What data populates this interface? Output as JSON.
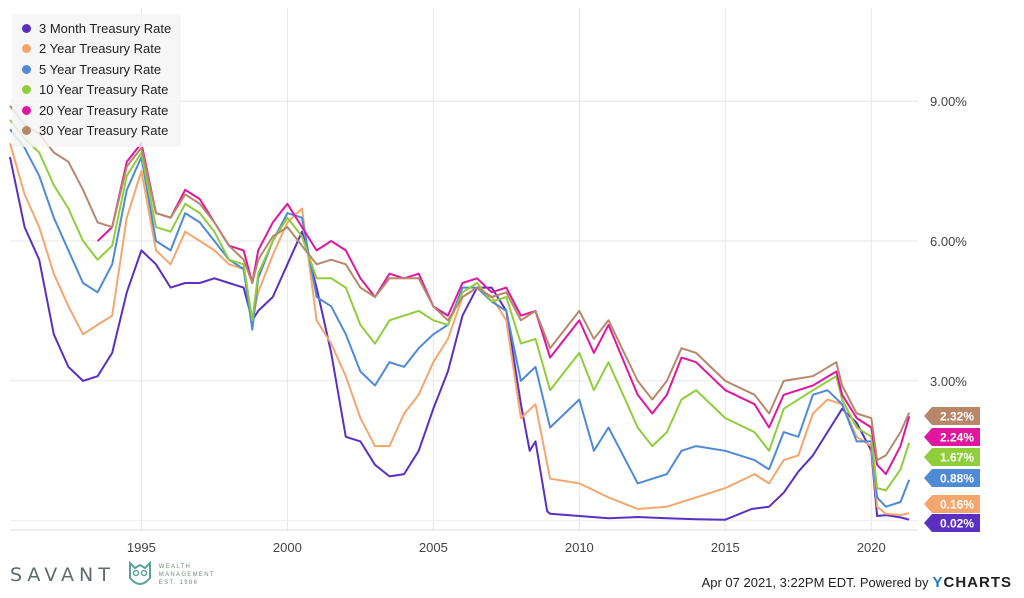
{
  "chart_data": {
    "type": "line",
    "y_axis_side": "right",
    "ylim": [
      -0.2,
      11.0
    ],
    "y_ticks": [
      3,
      6,
      9
    ],
    "y_tick_labels": [
      "3.00%",
      "6.00%",
      "9.00%"
    ],
    "xlim": [
      1990.5,
      2021.6
    ],
    "x_ticks": [
      1995,
      2000,
      2005,
      2010,
      2015,
      2020
    ],
    "x_tick_labels": [
      "1995",
      "2000",
      "2005",
      "2010",
      "2015",
      "2020"
    ],
    "grid": true,
    "legend_position": "top-left",
    "series": [
      {
        "name": "3 Month Treasury Rate",
        "color": "#5b2fc2",
        "last_label": "0.02%",
        "last_value": 0.02,
        "x": [
          1990.5,
          1991,
          1991.5,
          1992,
          1992.5,
          1993,
          1993.5,
          1994,
          1994.5,
          1995,
          1995.5,
          1996,
          1996.5,
          1997,
          1997.5,
          1998,
          1998.5,
          1998.8,
          1999,
          1999.5,
          2000,
          2000.5,
          2001,
          2001.5,
          2002,
          2002.5,
          2003,
          2003.5,
          2004,
          2004.5,
          2005,
          2005.5,
          2006,
          2006.5,
          2007,
          2007.5,
          2008,
          2008.3,
          2008.5,
          2008.9,
          2009,
          2010,
          2011,
          2012,
          2013,
          2014,
          2015,
          2015.9,
          2016.5,
          2017,
          2017.5,
          2018,
          2018.5,
          2019,
          2019.5,
          2020,
          2020.2,
          2020.5,
          2021,
          2021.3
        ],
        "y": [
          7.8,
          6.3,
          5.6,
          4.0,
          3.3,
          3.0,
          3.1,
          3.6,
          4.9,
          5.8,
          5.5,
          5.0,
          5.1,
          5.1,
          5.2,
          5.1,
          5.0,
          4.3,
          4.5,
          4.8,
          5.5,
          6.2,
          5.0,
          3.6,
          1.8,
          1.7,
          1.2,
          0.95,
          1.0,
          1.5,
          2.4,
          3.2,
          4.4,
          5.0,
          5.0,
          4.5,
          2.5,
          1.5,
          1.7,
          0.2,
          0.15,
          0.1,
          0.05,
          0.08,
          0.05,
          0.03,
          0.02,
          0.25,
          0.3,
          0.6,
          1.05,
          1.4,
          1.9,
          2.4,
          2.1,
          1.5,
          0.1,
          0.12,
          0.07,
          0.02
        ]
      },
      {
        "name": "2 Year Treasury Rate",
        "color": "#f5a66d",
        "last_label": "0.16%",
        "last_value": 0.16,
        "x": [
          1990.5,
          1991,
          1991.5,
          1992,
          1992.5,
          1993,
          1993.5,
          1994,
          1994.5,
          1995,
          1995.5,
          1996,
          1996.5,
          1997,
          1997.5,
          1998,
          1998.5,
          1998.8,
          1999,
          1999.5,
          2000,
          2000.5,
          2001,
          2001.5,
          2002,
          2002.5,
          2003,
          2003.5,
          2004,
          2004.5,
          2005,
          2005.5,
          2006,
          2006.5,
          2007,
          2007.5,
          2008,
          2008.5,
          2009,
          2010,
          2011,
          2012,
          2013,
          2014,
          2015,
          2016,
          2016.5,
          2017,
          2017.5,
          2018,
          2018.5,
          2019,
          2019.5,
          2020,
          2020.2,
          2020.5,
          2021,
          2021.3
        ],
        "y": [
          8.1,
          7.0,
          6.3,
          5.3,
          4.6,
          4.0,
          4.2,
          4.4,
          6.5,
          7.5,
          5.8,
          5.5,
          6.2,
          6.0,
          5.8,
          5.5,
          5.4,
          4.3,
          4.9,
          5.7,
          6.4,
          6.7,
          4.3,
          3.8,
          3.1,
          2.2,
          1.6,
          1.6,
          2.3,
          2.7,
          3.4,
          3.9,
          4.8,
          5.0,
          4.8,
          4.3,
          2.2,
          2.5,
          0.9,
          0.8,
          0.5,
          0.25,
          0.3,
          0.5,
          0.7,
          1.0,
          0.8,
          1.3,
          1.4,
          2.3,
          2.6,
          2.5,
          1.8,
          1.6,
          0.3,
          0.15,
          0.12,
          0.16
        ]
      },
      {
        "name": "5 Year Treasury Rate",
        "color": "#4f8ad6",
        "last_label": "0.88%",
        "last_value": 0.88,
        "x": [
          1990.5,
          1991,
          1991.5,
          1992,
          1992.5,
          1993,
          1993.5,
          1994,
          1994.5,
          1995,
          1995.5,
          1996,
          1996.5,
          1997,
          1997.5,
          1998,
          1998.5,
          1998.8,
          1999,
          1999.5,
          2000,
          2000.5,
          2001,
          2001.5,
          2002,
          2002.5,
          2003,
          2003.5,
          2004,
          2004.5,
          2005,
          2005.5,
          2006,
          2006.5,
          2007,
          2007.5,
          2008,
          2008.5,
          2009,
          2010,
          2010.5,
          2011,
          2012,
          2013,
          2013.5,
          2014,
          2015,
          2016,
          2016.5,
          2017,
          2017.5,
          2018,
          2018.5,
          2019,
          2019.5,
          2020,
          2020.2,
          2020.5,
          2021,
          2021.3
        ],
        "y": [
          8.4,
          8.0,
          7.4,
          6.5,
          5.8,
          5.1,
          4.9,
          5.5,
          7.1,
          7.8,
          6.0,
          5.8,
          6.6,
          6.4,
          6.0,
          5.6,
          5.4,
          4.1,
          5.2,
          6.0,
          6.6,
          6.5,
          4.8,
          4.6,
          4.0,
          3.2,
          2.9,
          3.4,
          3.3,
          3.7,
          4.0,
          4.2,
          5.0,
          5.0,
          4.7,
          4.5,
          3.0,
          3.3,
          2.0,
          2.6,
          1.5,
          2.0,
          0.8,
          1.0,
          1.5,
          1.6,
          1.5,
          1.3,
          1.1,
          1.9,
          1.8,
          2.7,
          2.8,
          2.5,
          1.7,
          1.7,
          0.5,
          0.3,
          0.4,
          0.88
        ]
      },
      {
        "name": "10 Year Treasury Rate",
        "color": "#8fce3a",
        "last_label": "1.67%",
        "last_value": 1.67,
        "x": [
          1990.5,
          1991,
          1991.5,
          1992,
          1992.5,
          1993,
          1993.5,
          1994,
          1994.5,
          1995,
          1995.5,
          1996,
          1996.5,
          1997,
          1997.5,
          1998,
          1998.5,
          1998.8,
          1999,
          1999.5,
          2000,
          2000.5,
          2001,
          2001.5,
          2002,
          2002.5,
          2003,
          2003.5,
          2004,
          2004.5,
          2005,
          2005.5,
          2006,
          2006.5,
          2007,
          2007.5,
          2008,
          2008.5,
          2009,
          2010,
          2010.5,
          2011,
          2012,
          2012.5,
          2013,
          2013.5,
          2014,
          2015,
          2016,
          2016.5,
          2017,
          2018,
          2018.8,
          2019,
          2019.5,
          2020,
          2020.2,
          2020.5,
          2021,
          2021.3
        ],
        "y": [
          8.6,
          8.2,
          7.9,
          7.2,
          6.7,
          6.0,
          5.6,
          5.9,
          7.4,
          7.9,
          6.3,
          6.2,
          6.8,
          6.6,
          6.2,
          5.6,
          5.5,
          4.3,
          5.3,
          6.0,
          6.5,
          6.1,
          5.2,
          5.2,
          5.0,
          4.2,
          3.8,
          4.3,
          4.4,
          4.5,
          4.3,
          4.2,
          4.9,
          5.1,
          4.7,
          4.8,
          3.8,
          3.9,
          2.8,
          3.6,
          2.8,
          3.4,
          2.0,
          1.6,
          1.9,
          2.6,
          2.8,
          2.2,
          1.9,
          1.5,
          2.4,
          2.8,
          3.1,
          2.6,
          2.0,
          1.8,
          0.7,
          0.65,
          1.1,
          1.67
        ]
      },
      {
        "name": "20 Year Treasury Rate",
        "color": "#e0179e",
        "last_label": "2.24%",
        "last_value": 2.24,
        "x": [
          1993.5,
          1994,
          1994.5,
          1995,
          1995.5,
          1996,
          1996.5,
          1997,
          1997.5,
          1998,
          1998.5,
          1998.8,
          1999,
          1999.5,
          2000,
          2000.5,
          2001,
          2001.5,
          2002,
          2002.5,
          2003,
          2003.5,
          2004,
          2004.5,
          2005,
          2005.5,
          2006,
          2006.5,
          2007,
          2007.5,
          2008,
          2008.5,
          2009,
          2010,
          2010.5,
          2011,
          2012,
          2012.5,
          2013,
          2013.5,
          2014,
          2015,
          2016,
          2016.5,
          2017,
          2018,
          2018.8,
          2019,
          2019.5,
          2020,
          2020.2,
          2020.5,
          2021,
          2021.3
        ],
        "y": [
          6.0,
          6.3,
          7.7,
          8.1,
          6.6,
          6.5,
          7.1,
          6.9,
          6.4,
          5.9,
          5.8,
          5.1,
          5.8,
          6.4,
          6.8,
          6.3,
          5.8,
          6.0,
          5.8,
          5.2,
          4.8,
          5.3,
          5.2,
          5.3,
          4.6,
          4.4,
          5.1,
          5.2,
          4.9,
          5.0,
          4.4,
          4.5,
          3.5,
          4.3,
          3.6,
          4.2,
          2.7,
          2.3,
          2.7,
          3.5,
          3.4,
          2.8,
          2.5,
          2.0,
          2.7,
          2.9,
          3.2,
          2.7,
          2.2,
          2.0,
          1.2,
          1.0,
          1.6,
          2.24
        ]
      },
      {
        "name": "30 Year Treasury Rate",
        "color": "#b8876a",
        "last_label": "2.32%",
        "last_value": 2.32,
        "x": [
          1990.5,
          1991,
          1991.5,
          1992,
          1992.5,
          1993,
          1993.5,
          1994,
          1994.5,
          1995,
          1995.5,
          1996,
          1996.5,
          1997,
          1997.5,
          1998,
          1998.5,
          1998.8,
          1999,
          1999.5,
          2000,
          2000.5,
          2001,
          2001.5,
          2002,
          2002.5,
          2003,
          2003.5,
          2004,
          2004.5,
          2005,
          2005.5,
          2006,
          2006.5,
          2007,
          2007.5,
          2008,
          2008.5,
          2009,
          2010,
          2010.5,
          2011,
          2012,
          2012.5,
          2013,
          2013.5,
          2014,
          2015,
          2016,
          2016.5,
          2017,
          2018,
          2018.8,
          2019,
          2019.5,
          2020,
          2020.2,
          2020.5,
          2021,
          2021.3
        ],
        "y": [
          8.9,
          8.5,
          8.3,
          7.9,
          7.7,
          7.1,
          6.4,
          6.3,
          7.6,
          8.0,
          6.6,
          6.5,
          7.0,
          6.8,
          6.4,
          5.9,
          5.6,
          5.1,
          5.6,
          6.1,
          6.3,
          5.9,
          5.5,
          5.6,
          5.5,
          5.0,
          4.8,
          5.2,
          5.2,
          5.2,
          4.6,
          4.3,
          4.8,
          5.0,
          4.8,
          4.9,
          4.3,
          4.5,
          3.7,
          4.5,
          3.9,
          4.3,
          3.0,
          2.6,
          3.0,
          3.7,
          3.6,
          3.0,
          2.7,
          2.3,
          3.0,
          3.1,
          3.4,
          2.9,
          2.3,
          2.2,
          1.3,
          1.4,
          1.9,
          2.32
        ]
      }
    ]
  },
  "branding": {
    "company": "SAVANT",
    "sub_line1": "WEALTH",
    "sub_line2": "MANAGEMENT",
    "sub_line3": "EST. 1986"
  },
  "footer": {
    "credit": "Apr 07 2021, 3:22PM EDT. Powered by",
    "logo_y": "Y",
    "logo_rest": "CHARTS"
  }
}
